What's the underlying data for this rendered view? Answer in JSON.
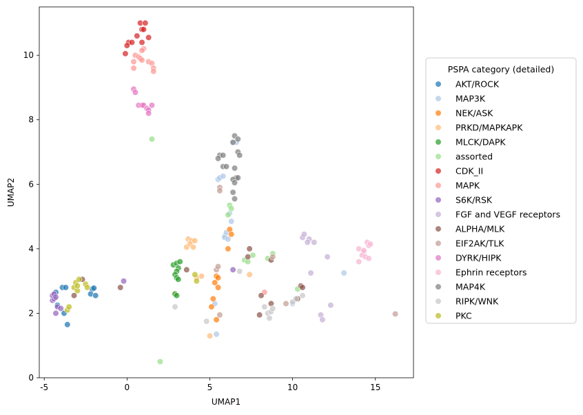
{
  "chart_data": {
    "type": "scatter",
    "xlabel": "UMAP1",
    "ylabel": "UMAP2",
    "xlim": [
      -5.3,
      17.3
    ],
    "ylim": [
      0,
      11.5
    ],
    "xticks": [
      -5,
      0,
      5,
      10,
      15
    ],
    "yticks": [
      0,
      2,
      4,
      6,
      8,
      10
    ],
    "grid": false,
    "legend": {
      "title": "PSPA category (detailed)",
      "placement": "center-right outside"
    },
    "series": [
      {
        "name": "AKT/ROCK",
        "color": "#1f77b4",
        "points": [
          [
            -4.2,
            2.25
          ],
          [
            -3.9,
            2.8
          ],
          [
            -3.7,
            2.8
          ],
          [
            -3.8,
            2.0
          ],
          [
            -3.6,
            1.65
          ],
          [
            -4.3,
            2.65
          ],
          [
            -2.1,
            2.75
          ],
          [
            -2.2,
            2.6
          ],
          [
            -1.9,
            2.55
          ],
          [
            -2.0,
            2.78
          ]
        ]
      },
      {
        "name": "MAP3K",
        "color": "#aec7e8",
        "points": [
          [
            5.5,
            6.15
          ],
          [
            5.6,
            6.2
          ],
          [
            5.8,
            6.25
          ],
          [
            5.9,
            4.4
          ],
          [
            6.0,
            4.5
          ],
          [
            5.9,
            4.35
          ],
          [
            6.1,
            4.3
          ],
          [
            6.2,
            5.1
          ],
          [
            6.3,
            4.85
          ],
          [
            6.4,
            7.3
          ],
          [
            5.3,
            2.3
          ],
          [
            5.4,
            1.35
          ],
          [
            10.0,
            2.3
          ],
          [
            13.1,
            3.25
          ],
          [
            6.6,
            7.3
          ]
        ]
      },
      {
        "name": "NEK/ASK",
        "color": "#ff7f0e",
        "points": [
          [
            6.2,
            4.6
          ],
          [
            6.3,
            4.45
          ],
          [
            6.1,
            4.0
          ],
          [
            5.3,
            2.95
          ],
          [
            5.5,
            2.8
          ],
          [
            5.4,
            3.15
          ],
          [
            5.5,
            3.1
          ],
          [
            5.2,
            2.45
          ],
          [
            5.1,
            2.2
          ],
          [
            5.4,
            1.8
          ]
        ]
      },
      {
        "name": "PRKD/MAPKAPK",
        "color": "#ffbb78",
        "points": [
          [
            3.7,
            4.3
          ],
          [
            3.9,
            4.25
          ],
          [
            3.6,
            4.05
          ],
          [
            4.1,
            4.25
          ],
          [
            3.8,
            4.15
          ],
          [
            4.0,
            4.05
          ],
          [
            4.5,
            3.15
          ],
          [
            4.2,
            3.1
          ],
          [
            2.9,
            2.6
          ],
          [
            5.0,
            1.3
          ],
          [
            7.4,
            3.2
          ]
        ]
      },
      {
        "name": "MLCK/DAPK",
        "color": "#2ca02c",
        "points": [
          [
            2.8,
            3.5
          ],
          [
            3.0,
            3.55
          ],
          [
            3.2,
            3.6
          ],
          [
            3.1,
            3.4
          ],
          [
            3.0,
            3.3
          ],
          [
            2.9,
            3.2
          ],
          [
            3.0,
            3.1
          ],
          [
            3.1,
            3.05
          ],
          [
            2.9,
            2.6
          ],
          [
            3.0,
            2.55
          ]
        ]
      },
      {
        "name": "assorted",
        "color": "#98df8a",
        "points": [
          [
            1.5,
            7.4
          ],
          [
            2.0,
            0.5
          ],
          [
            6.2,
            5.35
          ],
          [
            6.3,
            5.25
          ],
          [
            6.1,
            5.05
          ],
          [
            7.1,
            3.65
          ],
          [
            7.3,
            3.6
          ],
          [
            7.6,
            3.8
          ],
          [
            8.5,
            3.7
          ],
          [
            8.8,
            3.85
          ],
          [
            10.3,
            2.75
          ]
        ]
      },
      {
        "name": "CDK_II",
        "color": "#d62728",
        "points": [
          [
            0.8,
            11.0
          ],
          [
            1.1,
            11.0
          ],
          [
            0.9,
            10.8
          ],
          [
            1.0,
            10.8
          ],
          [
            0.6,
            10.6
          ],
          [
            1.3,
            10.55
          ],
          [
            0.1,
            10.4
          ],
          [
            0.3,
            10.4
          ],
          [
            0.9,
            10.4
          ],
          [
            0.0,
            10.3
          ],
          [
            -0.1,
            10.05
          ]
        ]
      },
      {
        "name": "MAPK",
        "color": "#ff9896",
        "points": [
          [
            0.5,
            10.0
          ],
          [
            0.7,
            9.95
          ],
          [
            0.8,
            9.9
          ],
          [
            1.0,
            10.2
          ],
          [
            0.9,
            10.15
          ],
          [
            0.4,
            9.8
          ],
          [
            1.3,
            9.8
          ],
          [
            1.5,
            9.75
          ],
          [
            1.6,
            9.6
          ],
          [
            1.6,
            9.5
          ],
          [
            0.4,
            9.6
          ],
          [
            0.9,
            9.85
          ],
          [
            8.3,
            2.65
          ]
        ]
      },
      {
        "name": "S6K/RSK",
        "color": "#9467bd",
        "points": [
          [
            -4.5,
            2.4
          ],
          [
            -4.4,
            2.45
          ],
          [
            -4.5,
            2.55
          ],
          [
            -4.4,
            2.6
          ],
          [
            -4.3,
            2.5
          ],
          [
            -4.2,
            2.2
          ],
          [
            -4.0,
            2.15
          ],
          [
            -4.3,
            2.0
          ],
          [
            -0.2,
            3.0
          ],
          [
            6.4,
            3.35
          ]
        ]
      },
      {
        "name": "FGF and VEGF receptors",
        "color": "#c5b0d5",
        "points": [
          [
            10.6,
            4.35
          ],
          [
            10.7,
            4.45
          ],
          [
            11.0,
            4.3
          ],
          [
            10.9,
            4.2
          ],
          [
            11.3,
            4.2
          ],
          [
            11.1,
            3.25
          ],
          [
            12.1,
            3.75
          ],
          [
            12.3,
            2.25
          ],
          [
            11.7,
            1.95
          ],
          [
            11.8,
            1.8
          ]
        ]
      },
      {
        "name": "ALPHA/MLK",
        "color": "#8c564b",
        "points": [
          [
            -3.2,
            2.55
          ],
          [
            -2.7,
            3.05
          ],
          [
            -0.4,
            2.8
          ],
          [
            3.6,
            3.35
          ],
          [
            7.4,
            4.0
          ],
          [
            7.3,
            3.75
          ],
          [
            8.7,
            3.65
          ],
          [
            8.7,
            2.3
          ],
          [
            8.0,
            1.95
          ],
          [
            8.1,
            2.55
          ],
          [
            10.3,
            2.45
          ],
          [
            10.5,
            2.85
          ],
          [
            10.6,
            2.8
          ]
        ]
      },
      {
        "name": "EIF2AK/TLK",
        "color": "#c49c94",
        "points": [
          [
            5.6,
            5.9
          ],
          [
            5.6,
            5.8
          ],
          [
            5.4,
            3.35
          ],
          [
            5.5,
            3.45
          ],
          [
            5.6,
            1.95
          ],
          [
            8.8,
            3.75
          ],
          [
            9.6,
            2.3
          ],
          [
            16.2,
            1.98
          ]
        ]
      },
      {
        "name": "DYRK/HIPK",
        "color": "#e377c2",
        "points": [
          [
            0.4,
            8.95
          ],
          [
            0.5,
            8.85
          ],
          [
            0.7,
            8.45
          ],
          [
            0.9,
            8.45
          ],
          [
            1.0,
            8.45
          ],
          [
            1.2,
            8.35
          ],
          [
            1.3,
            8.3
          ],
          [
            1.3,
            8.2
          ],
          [
            1.5,
            8.45
          ]
        ]
      },
      {
        "name": "Ephrin receptors",
        "color": "#f7b6d2",
        "points": [
          [
            14.0,
            4.0
          ],
          [
            14.3,
            3.9
          ],
          [
            14.5,
            4.2
          ],
          [
            14.6,
            4.1
          ],
          [
            14.7,
            4.15
          ],
          [
            14.2,
            3.8
          ],
          [
            14.4,
            3.75
          ],
          [
            14.6,
            3.7
          ],
          [
            14.0,
            3.6
          ],
          [
            14.3,
            3.95
          ]
        ]
      },
      {
        "name": "MAP4K",
        "color": "#7f7f7f",
        "points": [
          [
            6.5,
            7.5
          ],
          [
            6.7,
            7.4
          ],
          [
            6.4,
            7.3
          ],
          [
            6.7,
            7.0
          ],
          [
            6.8,
            6.9
          ],
          [
            5.6,
            6.9
          ],
          [
            5.8,
            6.9
          ],
          [
            5.5,
            6.8
          ],
          [
            5.8,
            6.55
          ],
          [
            6.0,
            6.55
          ],
          [
            6.5,
            6.5
          ],
          [
            6.6,
            6.2
          ],
          [
            6.4,
            6.15
          ],
          [
            6.7,
            6.2
          ],
          [
            6.5,
            6.05
          ],
          [
            6.4,
            5.75
          ],
          [
            6.5,
            5.55
          ]
        ]
      },
      {
        "name": "RIPK/WNK",
        "color": "#c7c7c7",
        "points": [
          [
            2.9,
            2.2
          ],
          [
            4.8,
            1.75
          ],
          [
            6.8,
            3.3
          ],
          [
            8.3,
            2.2
          ],
          [
            8.5,
            2.0
          ],
          [
            8.7,
            2.05
          ],
          [
            8.6,
            1.85
          ],
          [
            8.8,
            2.15
          ],
          [
            10.0,
            2.35
          ],
          [
            10.2,
            2.45
          ],
          [
            10.6,
            2.55
          ]
        ]
      },
      {
        "name": "PKC",
        "color": "#bcbd22",
        "points": [
          [
            -3.6,
            2.1
          ],
          [
            -3.5,
            2.2
          ],
          [
            -3.2,
            2.8
          ],
          [
            -3.0,
            2.7
          ],
          [
            -3.1,
            2.95
          ],
          [
            -2.9,
            3.05
          ],
          [
            -2.5,
            2.9
          ],
          [
            -2.4,
            2.8
          ],
          [
            -3.0,
            2.85
          ],
          [
            4.2,
            3.0
          ],
          [
            4.1,
            3.2
          ]
        ]
      }
    ]
  }
}
